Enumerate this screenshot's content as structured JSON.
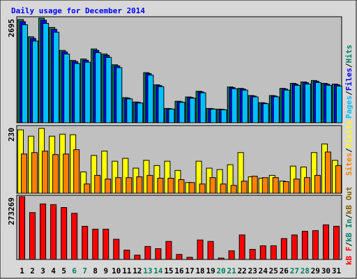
{
  "chart_data": [
    {
      "type": "bar",
      "title": "Daily usage for December 2014",
      "ylim": [
        0,
        2695
      ],
      "yticks": [
        2695
      ],
      "series": [
        {
          "name": "Hits",
          "color": "#00805c",
          "values": [
            2658,
            2215,
            2695,
            2455,
            1864,
            1606,
            1643,
            1901,
            1772,
            1495,
            646,
            535,
            1292,
            978,
            369,
            554,
            665,
            812,
            369,
            351,
            923,
            886,
            701,
            517,
            701,
            886,
            1015,
            1052,
            1089,
            1015,
            997
          ]
        },
        {
          "name": "Files",
          "color": "#0000ff",
          "values": [
            2605,
            2171,
            2641,
            2406,
            1827,
            1574,
            1610,
            1863,
            1737,
            1465,
            633,
            524,
            1266,
            958,
            362,
            543,
            652,
            796,
            362,
            344,
            905,
            868,
            687,
            507,
            687,
            868,
            995,
            1031,
            1067,
            995,
            977
          ]
        },
        {
          "name": "Pages",
          "color": "#00c0ff",
          "values": [
            2525,
            2104,
            2560,
            2332,
            1771,
            1526,
            1561,
            1806,
            1683,
            1420,
            614,
            508,
            1227,
            929,
            351,
            526,
            632,
            771,
            351,
            333,
            877,
            842,
            666,
            491,
            666,
            842,
            964,
            999,
            1035,
            964,
            947
          ]
        }
      ]
    },
    {
      "type": "bar",
      "ylim": [
        0,
        230
      ],
      "yticks": [
        230
      ],
      "series": [
        {
          "name": "Visits",
          "color": "#ffff00",
          "values": [
            220,
            198,
            225,
            198,
            205,
            203,
            74,
            131,
            146,
            111,
            121,
            87,
            114,
            96,
            111,
            79,
            37,
            111,
            87,
            82,
            99,
            141,
            57,
            52,
            62,
            42,
            94,
            91,
            141,
            171,
            114
          ]
        },
        {
          "name": "Sites",
          "color": "#ff8000",
          "values": [
            136,
            141,
            146,
            134,
            136,
            151,
            32,
            62,
            49,
            54,
            54,
            57,
            62,
            52,
            52,
            47,
            37,
            32,
            54,
            32,
            27,
            42,
            59,
            54,
            54,
            40,
            49,
            54,
            62,
            143,
            96
          ]
        }
      ]
    },
    {
      "type": "bar",
      "ylim": [
        0,
        273269
      ],
      "yticks": [
        273269
      ],
      "categories": [
        "1",
        "2",
        "3",
        "4",
        "5",
        "6",
        "7",
        "8",
        "9",
        "10",
        "11",
        "12",
        "13",
        "14",
        "15",
        "16",
        "17",
        "18",
        "19",
        "20",
        "21",
        "22",
        "23",
        "24",
        "25",
        "26",
        "27",
        "28",
        "29",
        "30",
        "31"
      ],
      "category_colors": [
        "#000000",
        "#000000",
        "#000000",
        "#000000",
        "#000000",
        "#00805c",
        "#00805c",
        "#000000",
        "#000000",
        "#000000",
        "#000000",
        "#000000",
        "#00805c",
        "#00805c",
        "#000000",
        "#000000",
        "#000000",
        "#000000",
        "#000000",
        "#00805c",
        "#00805c",
        "#000000",
        "#000000",
        "#000000",
        "#000000",
        "#000000",
        "#00805c",
        "#00805c",
        "#000000",
        "#000000",
        "#000000"
      ],
      "series": [
        {
          "name": "kB F",
          "color": "#ff0000",
          "values": [
            273269,
            204165,
            241857,
            238716,
            226152,
            201024,
            144486,
            131922,
            131922,
            87948,
            40833,
            18846,
            56538,
            47115,
            78525,
            21987,
            9423,
            84807,
            78525,
            6282,
            37692,
            106794,
            43974,
            59679,
            59679,
            91089,
            106794,
            122499,
            125640,
            150768,
            144486
          ]
        }
      ],
      "legend_extra": [
        {
          "name": "kB In",
          "color": "#00805c"
        },
        {
          "name": "kB Out",
          "color": "#806000"
        }
      ]
    }
  ]
}
